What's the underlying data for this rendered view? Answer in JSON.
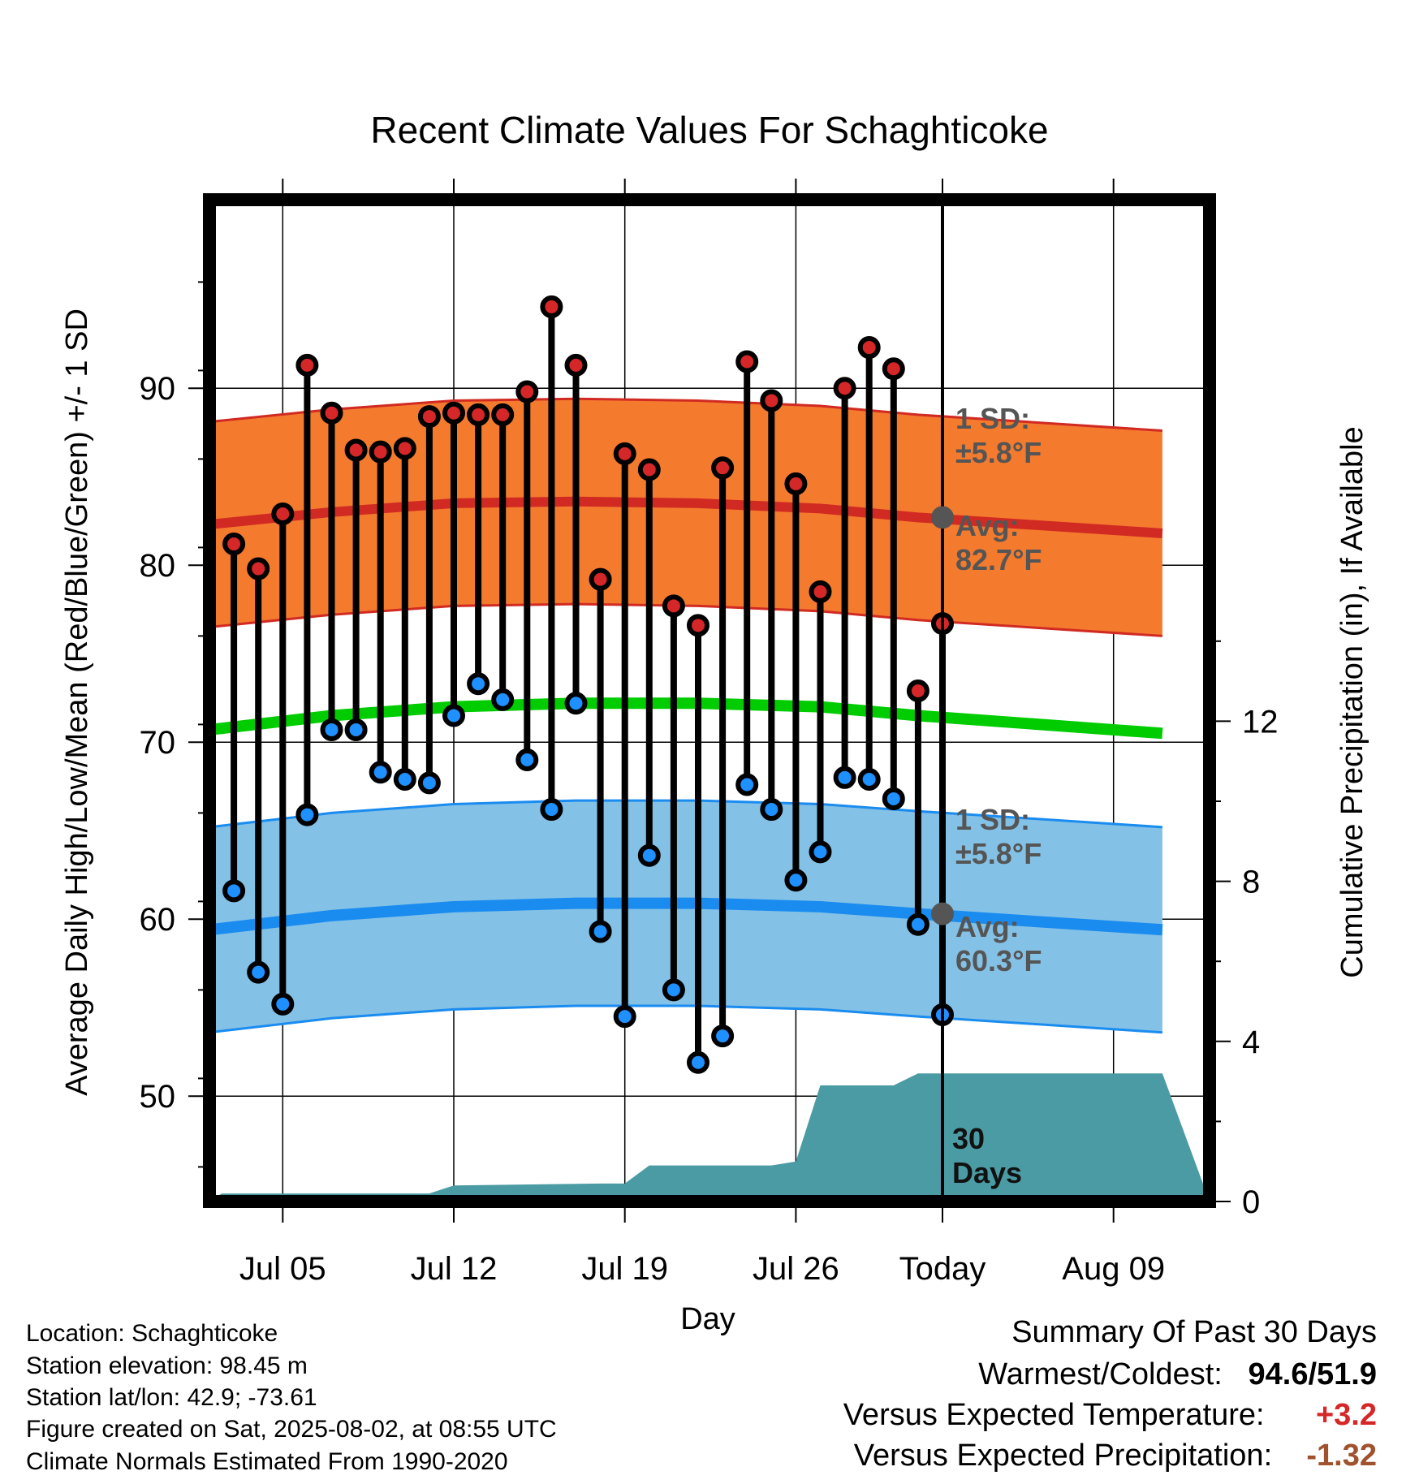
{
  "chart_data": {
    "type": "line",
    "title": "Recent Climate Values For Schaghticoke",
    "xlabel": "Day",
    "ylabel": "Average Daily High/Low/Mean (Red/Blue/Green) +/- 1 SD",
    "y2label": "Cumulative Precipitation (in), If Available",
    "x_ticks": [
      "Jul 05",
      "Jul 12",
      "Jul 19",
      "Jul 26",
      "Today",
      "Aug 09"
    ],
    "y_ticks": [
      50,
      60,
      70,
      80,
      90
    ],
    "y2_ticks": [
      0,
      4,
      8,
      12
    ],
    "ylim": [
      44,
      99
    ],
    "y2lim": [
      0,
      26
    ],
    "x": [
      "Jul 03",
      "Jul 04",
      "Jul 05",
      "Jul 06",
      "Jul 07",
      "Jul 08",
      "Jul 09",
      "Jul 10",
      "Jul 11",
      "Jul 12",
      "Jul 13",
      "Jul 14",
      "Jul 15",
      "Jul 16",
      "Jul 17",
      "Jul 18",
      "Jul 19",
      "Jul 20",
      "Jul 21",
      "Jul 22",
      "Jul 23",
      "Jul 24",
      "Jul 25",
      "Jul 26",
      "Jul 27",
      "Jul 28",
      "Jul 29",
      "Jul 30",
      "Jul 31",
      "Aug 01"
    ],
    "series": [
      {
        "name": "High",
        "color": "#d62728",
        "values": [
          81.2,
          79.8,
          82.9,
          91.3,
          88.6,
          86.5,
          86.4,
          86.6,
          88.4,
          88.6,
          88.5,
          88.5,
          89.8,
          94.6,
          91.3,
          79.2,
          86.3,
          85.4,
          77.7,
          76.6,
          85.5,
          91.5,
          89.3,
          84.6,
          78.5,
          90.0,
          92.3,
          91.1,
          72.9,
          76.7
        ]
      },
      {
        "name": "Low",
        "color": "#1e90ff",
        "values": [
          61.6,
          57.0,
          55.2,
          65.9,
          70.7,
          70.7,
          68.3,
          67.9,
          67.7,
          71.5,
          73.3,
          72.4,
          69.0,
          66.2,
          72.2,
          59.3,
          54.5,
          63.6,
          56.0,
          51.9,
          53.4,
          67.6,
          66.2,
          62.2,
          63.8,
          68.0,
          67.9,
          66.8,
          59.7,
          54.6
        ]
      }
    ],
    "normal_high": [
      82.3,
      83.0,
      83.5,
      83.6,
      83.5,
      83.2,
      82.7,
      81.8
    ],
    "normal_low": [
      59.4,
      60.2,
      60.7,
      60.9,
      60.9,
      60.7,
      60.3,
      59.4
    ],
    "normal_mean": [
      70.7,
      71.5,
      72.0,
      72.2,
      72.2,
      72.0,
      71.5,
      70.5
    ],
    "normal_x": [
      "Jul 02",
      "Jul 07",
      "Jul 12",
      "Jul 17",
      "Jul 22",
      "Jul 27",
      "Aug 01",
      "Aug 11"
    ],
    "sd_high": 5.8,
    "sd_low": 5.8,
    "precip_x": [
      "Jul 02",
      "Jul 02.5",
      "Jul 11",
      "Jul 12",
      "Jul 18",
      "Jul 19",
      "Jul 20",
      "Jul 25",
      "Jul 26",
      "Jul 27",
      "Jul 30",
      "Jul 31",
      "Aug 11"
    ],
    "precip_values": [
      0.0,
      0.2,
      0.2,
      0.4,
      0.45,
      0.45,
      0.9,
      0.9,
      1.0,
      2.9,
      2.9,
      3.2,
      3.2
    ],
    "today": "Aug 01",
    "annotations": {
      "high_sd": [
        "1 SD:",
        "±5.8°F"
      ],
      "high_avg": [
        "Avg:",
        "82.7°F"
      ],
      "low_sd": [
        "1 SD:",
        "±5.8°F"
      ],
      "low_avg": [
        "Avg:",
        "60.3°F"
      ],
      "days": [
        "30",
        "Days"
      ]
    },
    "colors": {
      "high_band": "#f47a2e",
      "high_line": "#d12a22",
      "low_band": "#84c1e6",
      "low_line": "#1a8cf0",
      "mean_line": "#00cc00",
      "precip": "#4a9ba3"
    }
  },
  "info": {
    "location": "Location: Schaghticoke",
    "elevation": "Station elevation: 98.45 m",
    "latlon": "Station lat/lon: 42.9; -73.61",
    "created": "Figure created on Sat, 2025-08-02, at 08:55 UTC",
    "normals": "Climate Normals Estimated From 1990-2020"
  },
  "summary": {
    "title": "Summary Of Past 30 Days",
    "warm_label": "Warmest/Coldest:",
    "warm_val": "94.6/51.9",
    "temp_label": "Versus Expected Temperature:",
    "temp_val": "+3.2",
    "precip_label": "Versus Expected Precipitation:",
    "precip_val": "-1.32"
  }
}
